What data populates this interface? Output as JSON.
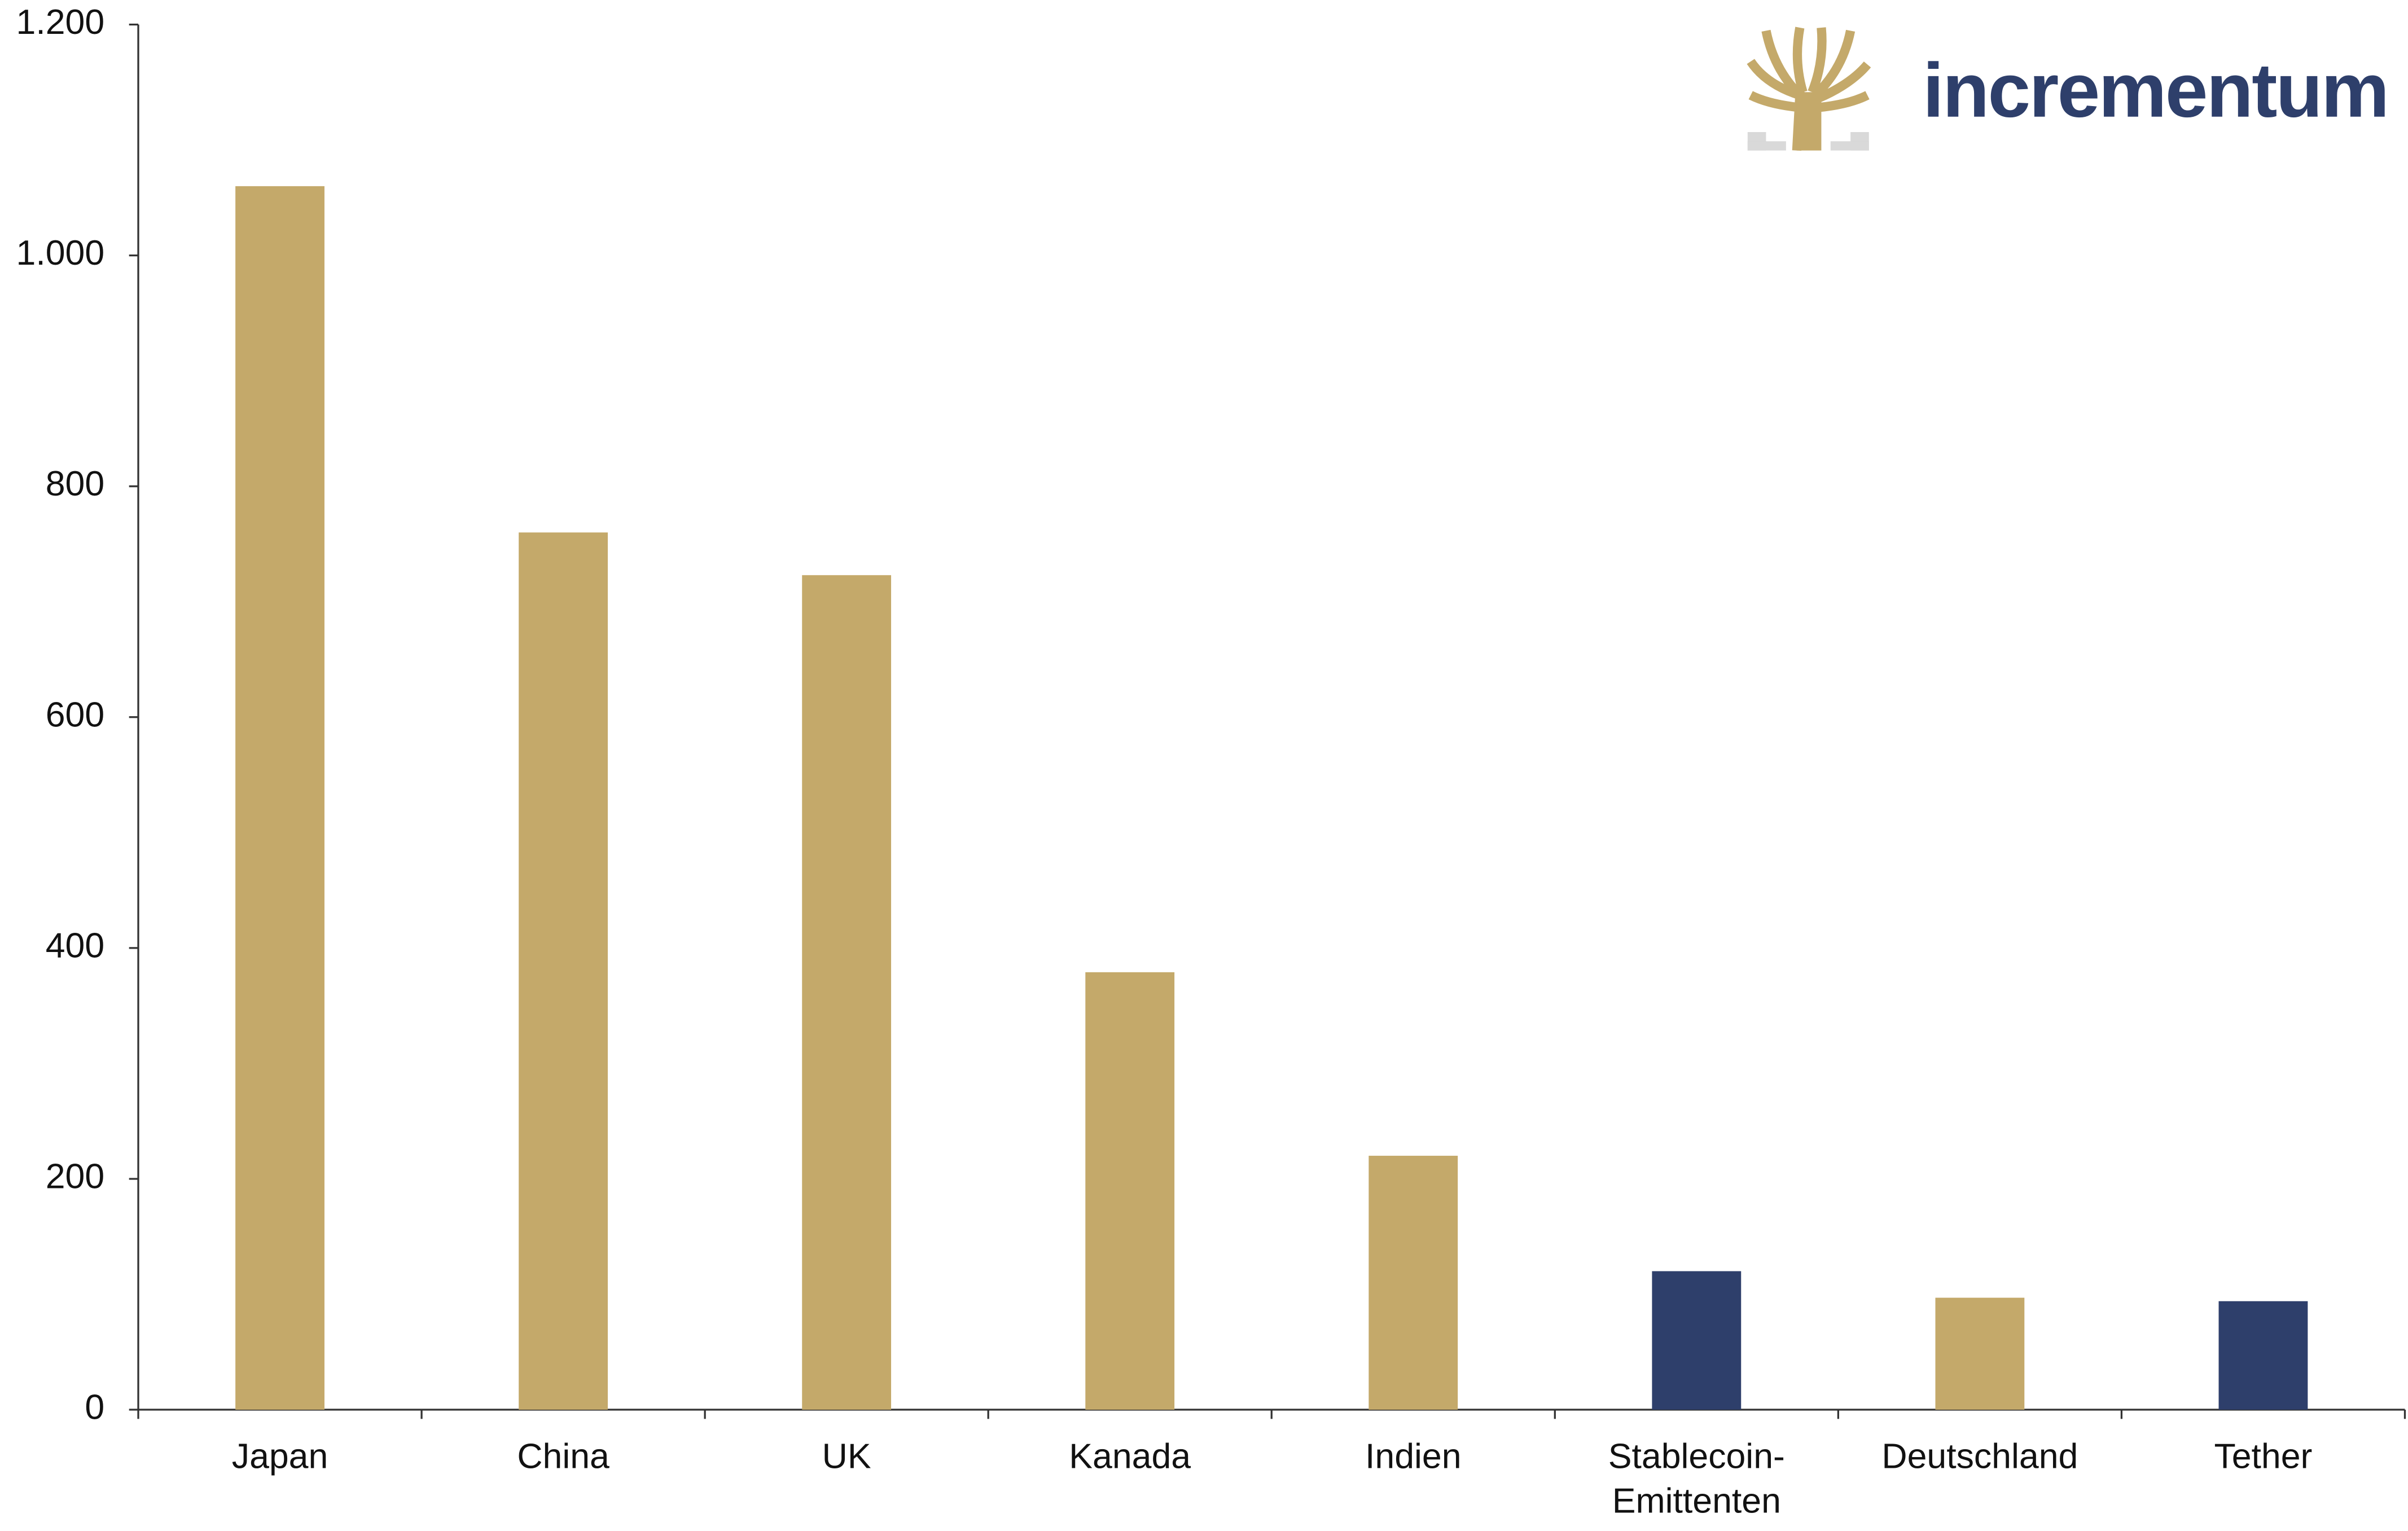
{
  "chart_data": {
    "type": "bar",
    "logo": "incrementum",
    "categories": [
      "Japan",
      "China",
      "UK",
      "Kanada",
      "Indien",
      "Stablecoin-Emittenten",
      "Deutschland",
      "Tether"
    ],
    "values": [
      1060,
      760,
      723,
      379,
      220,
      120,
      97,
      94
    ],
    "colors": [
      "#c4a96a",
      "#c4a96a",
      "#c4a96a",
      "#c4a96a",
      "#c4a96a",
      "#2e3f6b",
      "#c4a96a",
      "#2e3f6b"
    ],
    "ylim": [
      0,
      1200
    ],
    "yticks": [
      0,
      200,
      400,
      600,
      800,
      {
        "value": 1000,
        "label": "1.000"
      },
      {
        "value": 1200,
        "label": "1.200"
      }
    ],
    "grid": false
  }
}
